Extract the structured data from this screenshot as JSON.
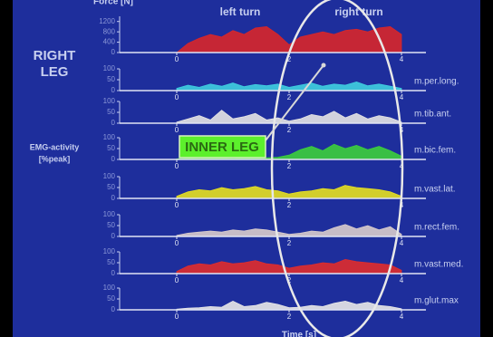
{
  "slide": {
    "right_leg": [
      "RIGHT",
      "LEG"
    ],
    "emg_label": [
      "EMG-activity",
      "[%peak]"
    ],
    "left_turn": "left turn",
    "right_turn": "right turn",
    "inner_leg": "INNER LEG"
  },
  "chart_data": [
    {
      "type": "area",
      "ylabel": "Force [N]",
      "color": "#d8262a",
      "xlim": [
        0,
        4
      ],
      "xticks": [
        0,
        2,
        4
      ],
      "ylim": [
        0,
        1400
      ],
      "yticks": [
        0,
        400,
        800,
        1200
      ],
      "x": [
        0,
        0.2,
        0.4,
        0.6,
        0.8,
        1,
        1.2,
        1.4,
        1.6,
        1.8,
        2,
        2.2,
        2.4,
        2.6,
        2.8,
        3,
        3.2,
        3.4,
        3.6,
        3.8,
        4
      ],
      "values": [
        0,
        350,
        550,
        700,
        600,
        850,
        700,
        950,
        1000,
        700,
        300,
        600,
        700,
        800,
        700,
        850,
        900,
        800,
        950,
        1000,
        700
      ]
    },
    {
      "type": "area",
      "title": "m.per.long.",
      "color": "#3fcfe0",
      "xlim": [
        0,
        4
      ],
      "xticks": [
        0,
        2,
        4
      ],
      "ylim": [
        0,
        100
      ],
      "yticks": [
        0,
        50,
        100
      ],
      "x": [
        0,
        0.2,
        0.4,
        0.6,
        0.8,
        1,
        1.2,
        1.4,
        1.6,
        1.8,
        2,
        2.2,
        2.4,
        2.6,
        2.8,
        3,
        3.2,
        3.4,
        3.6,
        3.8,
        4
      ],
      "values": [
        10,
        25,
        15,
        30,
        20,
        35,
        18,
        28,
        22,
        30,
        15,
        25,
        35,
        20,
        30,
        25,
        40,
        22,
        30,
        20,
        10
      ]
    },
    {
      "type": "area",
      "title": "m.tib.ant.",
      "color": "#e4e4e4",
      "xlim": [
        0,
        4
      ],
      "xticks": [
        0,
        2,
        4
      ],
      "ylim": [
        0,
        100
      ],
      "yticks": [
        0,
        50,
        100
      ],
      "x": [
        0,
        0.2,
        0.4,
        0.6,
        0.8,
        1,
        1.2,
        1.4,
        1.6,
        1.8,
        2,
        2.2,
        2.4,
        2.6,
        2.8,
        3,
        3.2,
        3.4,
        3.6,
        3.8,
        4
      ],
      "values": [
        5,
        20,
        35,
        15,
        60,
        20,
        30,
        45,
        15,
        25,
        10,
        20,
        40,
        30,
        55,
        25,
        45,
        20,
        35,
        25,
        5
      ]
    },
    {
      "type": "area",
      "title": "m.bic.fem.",
      "color": "#3ccf3c",
      "xlim": [
        0,
        4
      ],
      "xticks": [
        0,
        2,
        4
      ],
      "ylim": [
        0,
        100
      ],
      "yticks": [
        0,
        50,
        100
      ],
      "x": [
        0,
        0.2,
        0.4,
        0.6,
        0.8,
        1,
        1.2,
        1.4,
        1.6,
        1.8,
        2,
        2.2,
        2.4,
        2.6,
        2.8,
        3,
        3.2,
        3.4,
        3.6,
        3.8,
        4
      ],
      "values": [
        3,
        5,
        4,
        6,
        5,
        4,
        6,
        5,
        8,
        10,
        20,
        45,
        60,
        40,
        70,
        50,
        65,
        45,
        60,
        40,
        15
      ]
    },
    {
      "type": "area",
      "title": "m.vast.lat.",
      "color": "#e6e020",
      "xlim": [
        0,
        4
      ],
      "xticks": [
        0,
        2,
        4
      ],
      "ylim": [
        0,
        100
      ],
      "yticks": [
        0,
        50,
        100
      ],
      "x": [
        0,
        0.2,
        0.4,
        0.6,
        0.8,
        1,
        1.2,
        1.4,
        1.6,
        1.8,
        2,
        2.2,
        2.4,
        2.6,
        2.8,
        3,
        3.2,
        3.4,
        3.6,
        3.8,
        4
      ],
      "values": [
        10,
        30,
        40,
        35,
        50,
        40,
        45,
        55,
        40,
        35,
        20,
        30,
        35,
        45,
        40,
        60,
        50,
        45,
        40,
        30,
        10
      ]
    },
    {
      "type": "area",
      "title": "m.rect.fem.",
      "color": "#d8cccc",
      "xlim": [
        0,
        4
      ],
      "xticks": [
        0,
        2,
        4
      ],
      "ylim": [
        0,
        100
      ],
      "yticks": [
        0,
        50,
        100
      ],
      "x": [
        0,
        0.2,
        0.4,
        0.6,
        0.8,
        1,
        1.2,
        1.4,
        1.6,
        1.8,
        2,
        2.2,
        2.4,
        2.6,
        2.8,
        3,
        3.2,
        3.4,
        3.6,
        3.8,
        4
      ],
      "values": [
        5,
        15,
        20,
        25,
        20,
        30,
        25,
        35,
        30,
        20,
        10,
        15,
        25,
        20,
        40,
        55,
        35,
        50,
        30,
        45,
        10
      ]
    },
    {
      "type": "area",
      "title": "m.vast.med.",
      "color": "#e02c2c",
      "xlim": [
        0,
        4
      ],
      "xticks": [
        0,
        2,
        4
      ],
      "ylim": [
        0,
        100
      ],
      "yticks": [
        0,
        50,
        100
      ],
      "x": [
        0,
        0.2,
        0.4,
        0.6,
        0.8,
        1,
        1.2,
        1.4,
        1.6,
        1.8,
        2,
        2.2,
        2.4,
        2.6,
        2.8,
        3,
        3.2,
        3.4,
        3.6,
        3.8,
        4
      ],
      "values": [
        10,
        35,
        45,
        40,
        55,
        45,
        50,
        60,
        45,
        40,
        25,
        35,
        40,
        50,
        45,
        65,
        55,
        50,
        45,
        40,
        15
      ]
    },
    {
      "type": "area",
      "title": "m.glut.max",
      "xlabel": "Time [s]",
      "color": "#e8e8e8",
      "xlim": [
        0,
        4
      ],
      "xticks": [
        0,
        2,
        4
      ],
      "ylim": [
        0,
        100
      ],
      "yticks": [
        0,
        50,
        100
      ],
      "x": [
        0,
        0.2,
        0.4,
        0.6,
        0.8,
        1,
        1.2,
        1.4,
        1.6,
        1.8,
        2,
        2.2,
        2.4,
        2.6,
        2.8,
        3,
        3.2,
        3.4,
        3.6,
        3.8,
        4
      ],
      "values": [
        3,
        8,
        10,
        15,
        12,
        40,
        15,
        20,
        35,
        25,
        10,
        12,
        20,
        15,
        30,
        40,
        25,
        35,
        20,
        15,
        5
      ]
    }
  ]
}
